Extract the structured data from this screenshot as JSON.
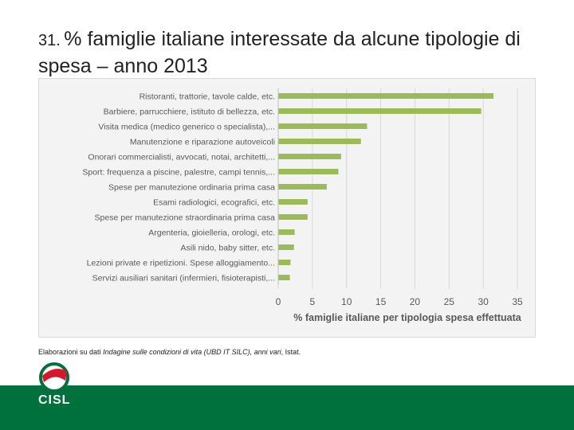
{
  "slide": {
    "number": "31.",
    "title": "% famiglie italiane interessate da alcune tipologie di spesa – anno 2013",
    "source_prefix": "Elaborazioni su dati ",
    "source_italic": "Indagine sulle condizioni di vita (UBD IT SILC), anni vari",
    "source_suffix": ", Istat.",
    "logo_text": "CISL"
  },
  "colors": {
    "bar": "#9bbb59",
    "footer": "#00703c",
    "logo_red": "#d7182a"
  },
  "chart_data": {
    "type": "bar",
    "orientation": "horizontal",
    "categories": [
      "Ristoranti, trattorie, tavole calde, etc.",
      "Barbiere, parrucchiere, istituto di bellezza, etc.",
      "Visita medica (medico generico o specialista),...",
      "Manutenzione e riparazione autoveicoli",
      "Onorari commercialisti, avvocati, notai, architetti,...",
      "Sport: frequenza a piscine, palestre, campi tennis,...",
      "Spese per manutezione ordinaria prima casa",
      "Esami radiologici, ecografici, etc.",
      "Spese per manutezione straordinaria prima casa",
      "Argenteria, gioielleria, orologi, etc.",
      "Asili nido, baby sitter, etc.",
      "Lezioni private e ripetizioni. Spese alloggiamento...",
      "Servizi ausiliari sanitari (infermieri, fisioterapisti,..."
    ],
    "values": [
      31.5,
      29.7,
      13.0,
      12.1,
      9.2,
      8.8,
      7.1,
      4.3,
      4.3,
      2.4,
      2.3,
      1.8,
      1.7
    ],
    "xlabel": "% famiglie italiane per tipologia spesa effettuata",
    "xlim": [
      0,
      35
    ],
    "xticks": [
      0,
      5,
      10,
      15,
      20,
      25,
      30,
      35
    ],
    "grid": "vertical"
  }
}
